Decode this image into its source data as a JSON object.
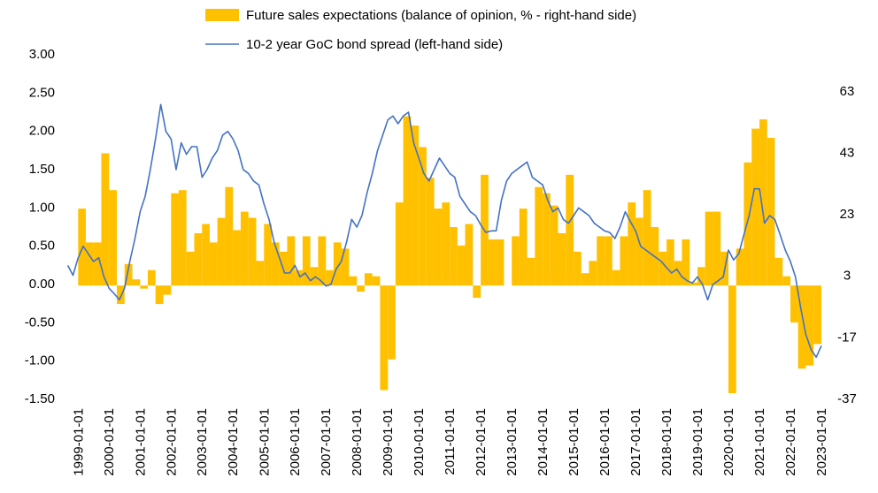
{
  "chart_data": {
    "type": "combo",
    "xlim": [
      "1998-08-15",
      "2023-04-15"
    ],
    "xticks": [
      "1999-01-01",
      "2000-01-01",
      "2001-01-01",
      "2002-01-01",
      "2003-01-01",
      "2004-01-01",
      "2005-01-01",
      "2006-01-01",
      "2007-01-01",
      "2008-01-01",
      "2009-01-01",
      "2010-01-01",
      "2011-01-01",
      "2012-01-01",
      "2013-01-01",
      "2014-01-01",
      "2015-01-01",
      "2016-01-01",
      "2017-01-01",
      "2018-01-01",
      "2019-01-01",
      "2020-01-01",
      "2021-01-01",
      "2022-01-01",
      "2023-01-01"
    ],
    "ylim": [
      -1.5,
      3
    ],
    "yticks": [
      {
        "value": -1.5,
        "label": "-1.50"
      },
      {
        "value": -1,
        "label": "-1.00"
      },
      {
        "value": -0.5,
        "label": "-0.50"
      },
      {
        "value": 0,
        "label": "0.00"
      },
      {
        "value": 0.5,
        "label": "0.50"
      },
      {
        "value": 1,
        "label": "1.00"
      },
      {
        "value": 1.5,
        "label": "1.50"
      },
      {
        "value": 2,
        "label": "2.00"
      },
      {
        "value": 2.5,
        "label": "2.50"
      },
      {
        "value": 3,
        "label": "3.00"
      }
    ],
    "y2lim": [
      -37,
      75
    ],
    "y2ticks": [
      -37,
      -17,
      3,
      23,
      43,
      63
    ],
    "series": [
      {
        "name": "Future sales expectations (balance of opinion, % - right-hand side)",
        "type": "bar",
        "axis": "y2",
        "color": "#FFC000",
        "x": [
          "1999-01-01",
          "1999-04-01",
          "1999-07-01",
          "1999-10-01",
          "2000-01-01",
          "2000-04-01",
          "2000-07-01",
          "2000-10-01",
          "2001-01-01",
          "2001-04-01",
          "2001-07-01",
          "2001-10-01",
          "2002-01-01",
          "2002-04-01",
          "2002-07-01",
          "2002-10-01",
          "2003-01-01",
          "2003-04-01",
          "2003-07-01",
          "2003-10-01",
          "2004-01-01",
          "2004-04-01",
          "2004-07-01",
          "2004-10-01",
          "2005-01-01",
          "2005-04-01",
          "2005-07-01",
          "2005-10-01",
          "2006-01-01",
          "2006-04-01",
          "2006-07-01",
          "2006-10-01",
          "2007-01-01",
          "2007-04-01",
          "2007-07-01",
          "2007-10-01",
          "2008-01-01",
          "2008-04-01",
          "2008-07-01",
          "2008-10-01",
          "2009-01-01",
          "2009-04-01",
          "2009-07-01",
          "2009-10-01",
          "2010-01-01",
          "2010-04-01",
          "2010-07-01",
          "2010-10-01",
          "2011-01-01",
          "2011-04-01",
          "2011-07-01",
          "2011-10-01",
          "2012-01-01",
          "2012-04-01",
          "2012-07-01",
          "2012-10-01",
          "2013-01-01",
          "2013-04-01",
          "2013-07-01",
          "2013-10-01",
          "2014-01-01",
          "2014-04-01",
          "2014-07-01",
          "2014-10-01",
          "2015-01-01",
          "2015-04-01",
          "2015-07-01",
          "2015-10-01",
          "2016-01-01",
          "2016-04-01",
          "2016-07-01",
          "2016-10-01",
          "2017-01-01",
          "2017-04-01",
          "2017-07-01",
          "2017-10-01",
          "2018-01-01",
          "2018-04-01",
          "2018-07-01",
          "2018-10-01",
          "2019-01-01",
          "2019-04-01",
          "2019-07-01",
          "2019-10-01",
          "2020-01-01",
          "2020-04-01",
          "2020-07-01",
          "2020-10-01",
          "2021-01-01",
          "2021-04-01",
          "2021-07-01",
          "2021-10-01",
          "2022-01-01",
          "2022-04-01",
          "2022-07-01",
          "2022-10-01"
        ],
        "values": [
          25,
          14,
          14,
          43,
          31,
          -6,
          7,
          2,
          -1,
          5,
          -6,
          -3,
          30,
          31,
          11,
          17,
          20,
          14,
          22,
          32,
          18,
          24,
          22,
          8,
          20,
          14,
          11,
          16,
          5,
          16,
          6,
          16,
          5,
          14,
          12,
          3,
          -2,
          4,
          3,
          -34,
          -24,
          27,
          55,
          52,
          45,
          35,
          25,
          27,
          19,
          13,
          20,
          -4,
          36,
          15,
          15,
          0,
          16,
          25,
          9,
          32,
          30,
          26,
          17,
          36,
          11,
          4,
          8,
          16,
          16,
          5,
          16,
          27,
          22,
          31,
          19,
          11,
          15,
          8,
          15,
          1,
          6,
          24,
          24,
          11,
          -35,
          12,
          40,
          51,
          54,
          48,
          9,
          3,
          -12,
          -27,
          -26,
          -19
        ]
      },
      {
        "name": "10-2 year GoC bond spread (left-hand side)",
        "type": "line",
        "axis": "y",
        "color": "#4472C4",
        "x": [
          "1998-09-01",
          "1998-11-01",
          "1999-01-01",
          "1999-03-01",
          "1999-05-01",
          "1999-07-01",
          "1999-09-01",
          "1999-11-01",
          "2000-01-01",
          "2000-03-01",
          "2000-05-01",
          "2000-07-01",
          "2000-09-01",
          "2000-11-01",
          "2001-01-01",
          "2001-03-01",
          "2001-05-01",
          "2001-07-01",
          "2001-09-01",
          "2001-11-01",
          "2002-01-01",
          "2002-03-01",
          "2002-05-01",
          "2002-07-01",
          "2002-09-01",
          "2002-11-01",
          "2003-01-01",
          "2003-03-01",
          "2003-05-01",
          "2003-07-01",
          "2003-09-01",
          "2003-11-01",
          "2004-01-01",
          "2004-03-01",
          "2004-05-01",
          "2004-07-01",
          "2004-09-01",
          "2004-11-01",
          "2005-01-01",
          "2005-03-01",
          "2005-05-01",
          "2005-07-01",
          "2005-09-01",
          "2005-11-01",
          "2006-01-01",
          "2006-03-01",
          "2006-05-01",
          "2006-07-01",
          "2006-09-01",
          "2006-11-01",
          "2007-01-01",
          "2007-03-01",
          "2007-05-01",
          "2007-07-01",
          "2007-09-01",
          "2007-11-01",
          "2008-01-01",
          "2008-03-01",
          "2008-05-01",
          "2008-07-01",
          "2008-09-01",
          "2008-11-01",
          "2009-01-01",
          "2009-03-01",
          "2009-05-01",
          "2009-07-01",
          "2009-09-01",
          "2009-11-01",
          "2010-01-01",
          "2010-03-01",
          "2010-05-01",
          "2010-07-01",
          "2010-09-01",
          "2010-11-01",
          "2011-01-01",
          "2011-03-01",
          "2011-05-01",
          "2011-07-01",
          "2011-09-01",
          "2011-11-01",
          "2012-01-01",
          "2012-03-01",
          "2012-05-01",
          "2012-07-01",
          "2012-09-01",
          "2012-11-01",
          "2013-01-01",
          "2013-03-01",
          "2013-05-01",
          "2013-07-01",
          "2013-09-01",
          "2013-11-01",
          "2014-01-01",
          "2014-03-01",
          "2014-05-01",
          "2014-07-01",
          "2014-09-01",
          "2014-11-01",
          "2015-01-01",
          "2015-03-01",
          "2015-05-01",
          "2015-07-01",
          "2015-09-01",
          "2015-11-01",
          "2016-01-01",
          "2016-03-01",
          "2016-05-01",
          "2016-07-01",
          "2016-09-01",
          "2016-11-01",
          "2017-01-01",
          "2017-03-01",
          "2017-05-01",
          "2017-07-01",
          "2017-09-01",
          "2017-11-01",
          "2018-01-01",
          "2018-03-01",
          "2018-05-01",
          "2018-07-01",
          "2018-09-01",
          "2018-11-01",
          "2019-01-01",
          "2019-03-01",
          "2019-05-01",
          "2019-07-01",
          "2019-09-01",
          "2019-11-01",
          "2020-01-01",
          "2020-03-01",
          "2020-05-01",
          "2020-07-01",
          "2020-09-01",
          "2020-11-01",
          "2021-01-01",
          "2021-03-01",
          "2021-05-01",
          "2021-07-01",
          "2021-09-01",
          "2021-11-01",
          "2022-01-01",
          "2022-03-01",
          "2022-05-01",
          "2022-07-01",
          "2022-09-01",
          "2022-11-01",
          "2023-01-01"
        ],
        "values": [
          0.25,
          0.12,
          0.35,
          0.5,
          0.4,
          0.3,
          0.35,
          0.1,
          -0.05,
          -0.12,
          -0.2,
          -0.05,
          0.3,
          0.6,
          0.95,
          1.15,
          1.5,
          1.9,
          2.35,
          2.0,
          1.9,
          1.5,
          1.85,
          1.7,
          1.8,
          1.8,
          1.4,
          1.5,
          1.65,
          1.75,
          1.95,
          2.0,
          1.9,
          1.75,
          1.5,
          1.45,
          1.35,
          1.3,
          1.05,
          0.85,
          0.55,
          0.35,
          0.15,
          0.15,
          0.25,
          0.1,
          0.15,
          0.05,
          0.1,
          0.05,
          -0.02,
          0.0,
          0.2,
          0.3,
          0.55,
          0.85,
          0.75,
          0.9,
          1.2,
          1.45,
          1.75,
          1.95,
          2.15,
          2.2,
          2.1,
          2.2,
          2.25,
          1.85,
          1.65,
          1.45,
          1.35,
          1.5,
          1.65,
          1.55,
          1.45,
          1.4,
          1.15,
          1.05,
          0.95,
          0.9,
          0.78,
          0.68,
          0.7,
          0.7,
          1.1,
          1.35,
          1.45,
          1.5,
          1.55,
          1.6,
          1.4,
          1.35,
          1.3,
          1.1,
          0.95,
          1.0,
          0.85,
          0.8,
          0.9,
          1.0,
          0.95,
          0.9,
          0.8,
          0.75,
          0.7,
          0.68,
          0.6,
          0.75,
          0.95,
          0.82,
          0.7,
          0.5,
          0.45,
          0.4,
          0.35,
          0.3,
          0.22,
          0.15,
          0.2,
          0.1,
          0.05,
          0.02,
          0.1,
          0.0,
          -0.2,
          0.0,
          0.05,
          0.1,
          0.45,
          0.32,
          0.4,
          0.65,
          0.9,
          1.25,
          1.25,
          0.8,
          0.9,
          0.85,
          0.65,
          0.45,
          0.3,
          0.1,
          -0.3,
          -0.65,
          -0.85,
          -0.95,
          -0.8
        ]
      }
    ]
  }
}
